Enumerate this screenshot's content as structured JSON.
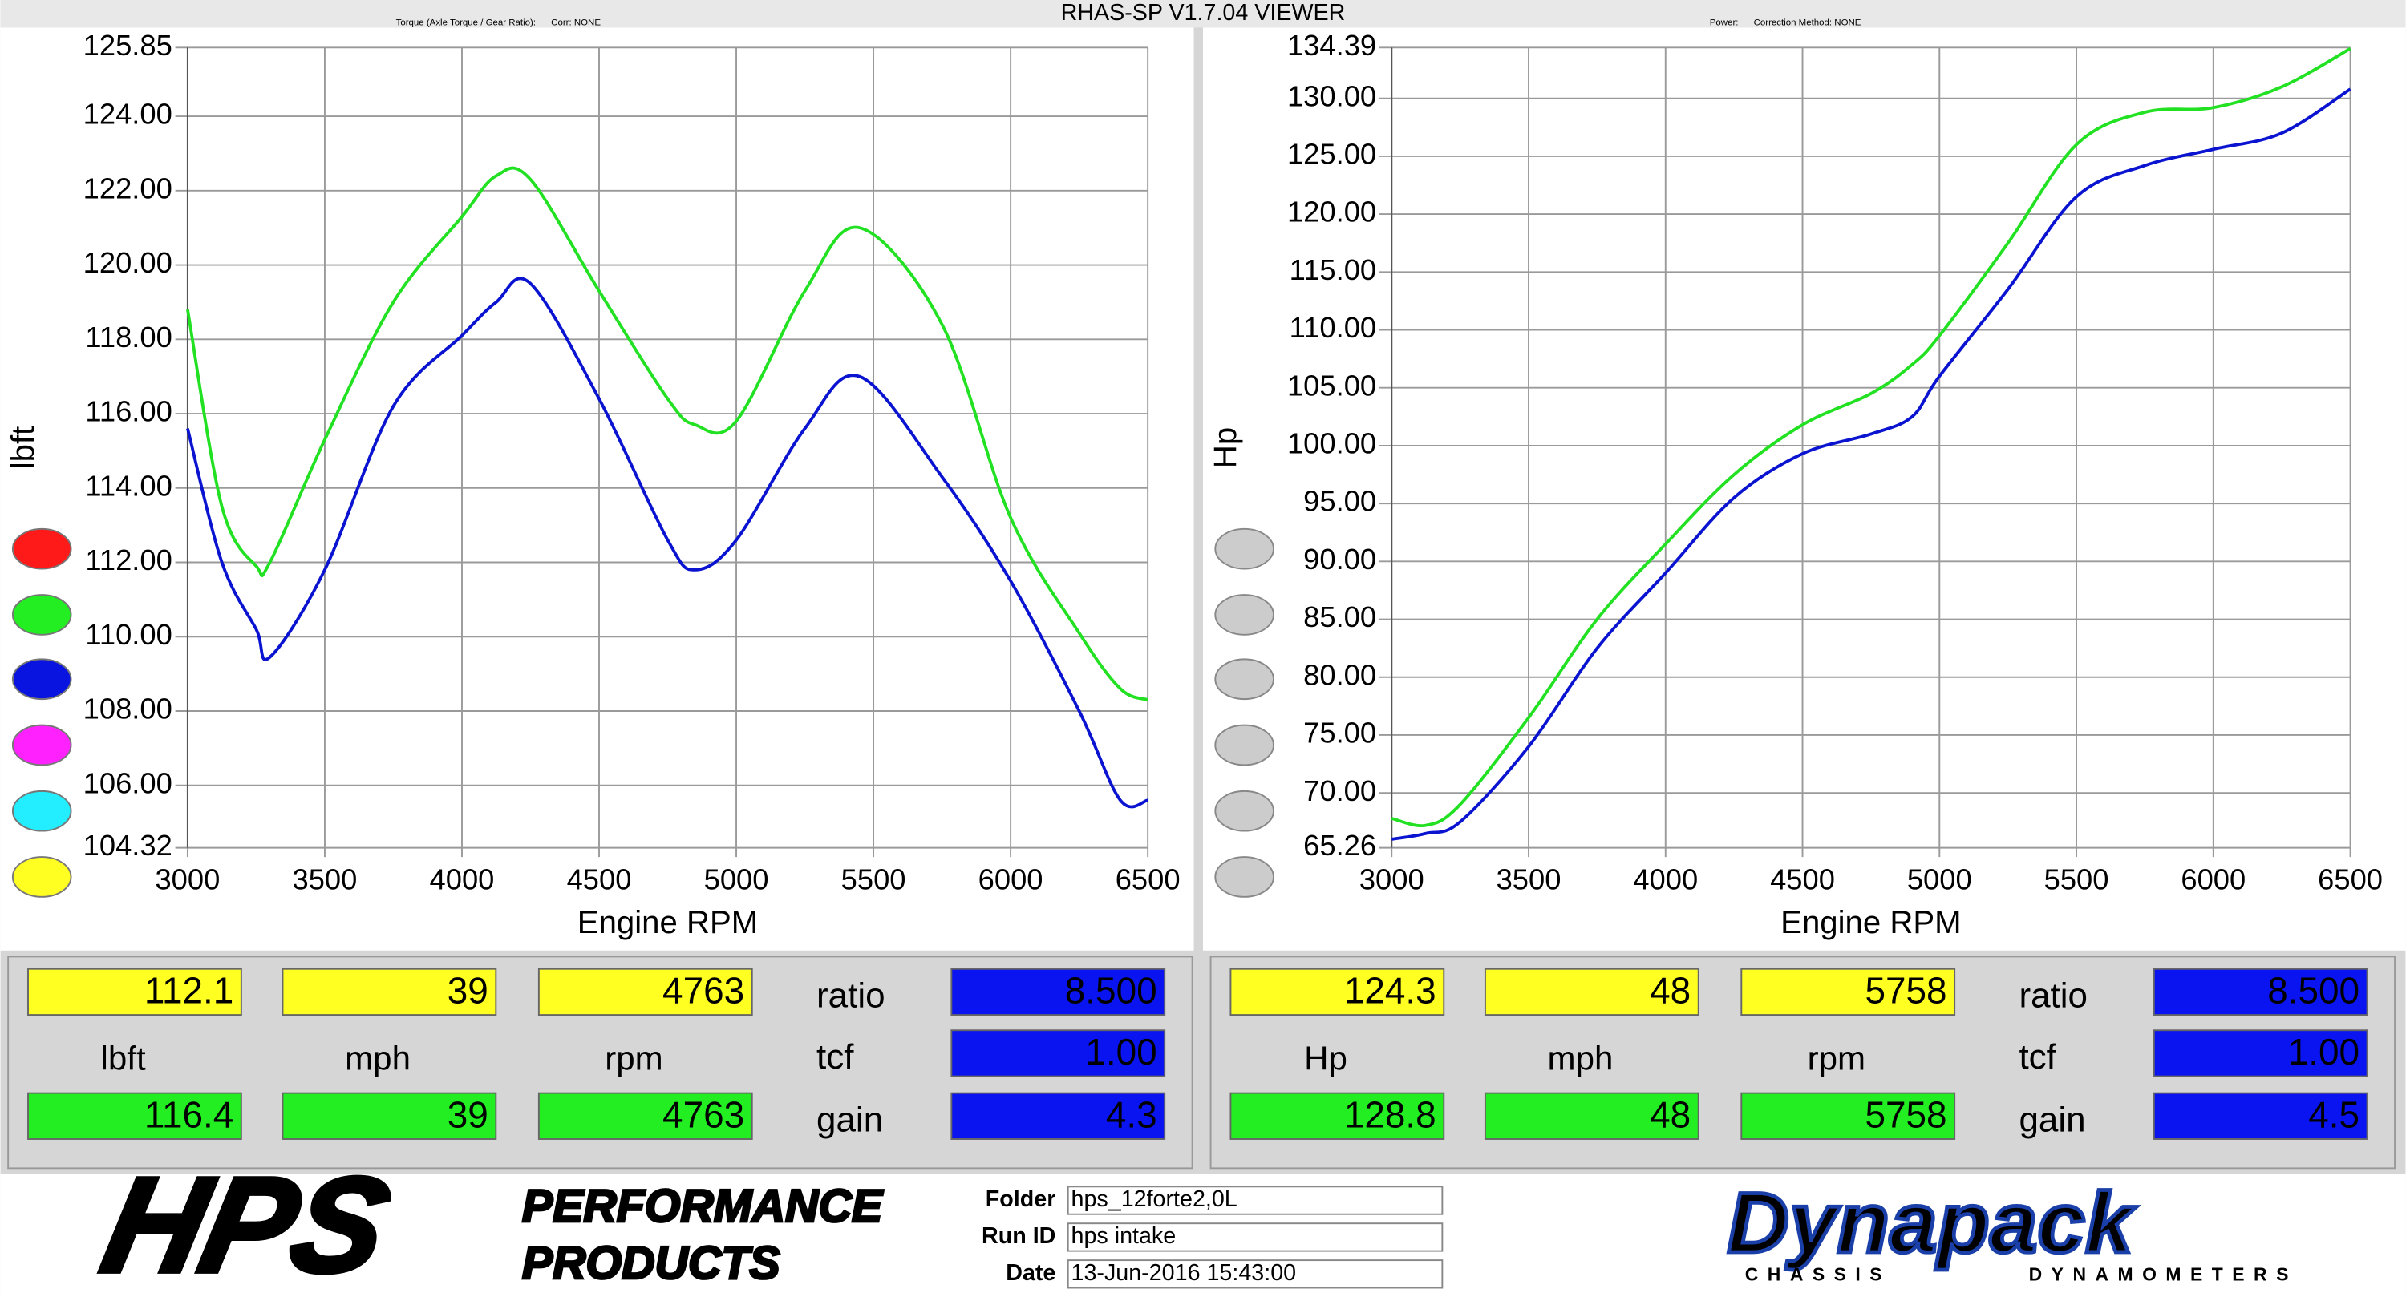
{
  "window_title": "RHAS-SP V1.7.04  VIEWER",
  "chart_data": [
    {
      "type": "line",
      "subtitle": "Torque (Axle Torque / Gear Ratio):",
      "correction": "Corr: NONE",
      "x_label": "Engine RPM",
      "y_label": "lbft",
      "x": [
        3000,
        3125,
        3250,
        3300,
        3500,
        3750,
        4000,
        4125,
        4250,
        4500,
        4750,
        4850,
        5000,
        5250,
        5450,
        5750,
        6000,
        6250,
        6400,
        6500
      ],
      "series": [
        {
          "color": "#22e022",
          "values": [
            118.8,
            113.5,
            111.9,
            112.0,
            115.3,
            119.0,
            121.3,
            122.4,
            122.3,
            119.3,
            116.4,
            115.7,
            115.8,
            119.3,
            121.0,
            118.4,
            113.2,
            110.1,
            108.6,
            108.3
          ]
        },
        {
          "color": "#0a14d0",
          "values": [
            115.6,
            112.0,
            110.2,
            109.45,
            111.8,
            116.2,
            118.1,
            119.0,
            119.5,
            116.4,
            112.6,
            111.8,
            112.6,
            115.6,
            117.0,
            114.3,
            111.5,
            108.0,
            105.6,
            105.6
          ]
        }
      ],
      "xlim": [
        3000,
        6500
      ],
      "xticks": [
        3000,
        3500,
        4000,
        4500,
        5000,
        5500,
        6000,
        6500
      ],
      "ylim": [
        104.32,
        125.85
      ],
      "yticks": [
        104.32,
        {
          "value": 106,
          "label": "106.00"
        },
        {
          "value": 108,
          "label": "108.00"
        },
        {
          "value": 110,
          "label": "110.00"
        },
        {
          "value": 112,
          "label": "112.00"
        },
        {
          "value": 114,
          "label": "114.00"
        },
        {
          "value": 116,
          "label": "116.00"
        },
        {
          "value": 118,
          "label": "118.00"
        },
        {
          "value": 120,
          "label": "120.00"
        },
        {
          "value": 122,
          "label": "122.00"
        },
        {
          "value": 124,
          "label": "124.00"
        },
        125.85
      ],
      "grid": true
    },
    {
      "type": "line",
      "subtitle": "Power:",
      "correction": "Correction Method: NONE",
      "x_label": "Engine RPM",
      "y_label": "Hp",
      "x": [
        3000,
        3125,
        3250,
        3500,
        3750,
        4000,
        4250,
        4500,
        4750,
        4900,
        5000,
        5250,
        5500,
        5750,
        6000,
        6250,
        6500
      ],
      "series": [
        {
          "color": "#22e022",
          "values": [
            67.8,
            67.2,
            69.0,
            76.5,
            85.0,
            91.5,
            97.5,
            101.8,
            104.5,
            107.0,
            109.5,
            117.5,
            126.0,
            128.8,
            129.2,
            131.0,
            134.3
          ]
        },
        {
          "color": "#0a14d0",
          "values": [
            66.0,
            66.5,
            67.5,
            74.0,
            82.5,
            89.0,
            95.5,
            99.3,
            101.0,
            102.5,
            106.0,
            113.5,
            121.5,
            124.2,
            125.6,
            127.0,
            130.8
          ]
        }
      ],
      "xlim": [
        3000,
        6500
      ],
      "xticks": [
        3000,
        3500,
        4000,
        4500,
        5000,
        5500,
        6000,
        6500
      ],
      "ylim": [
        65.26,
        134.39
      ],
      "yticks": [
        65.26,
        {
          "value": 70,
          "label": "70.00"
        },
        {
          "value": 75,
          "label": "75.00"
        },
        {
          "value": 80,
          "label": "80.00"
        },
        {
          "value": 85,
          "label": "85.00"
        },
        {
          "value": 90,
          "label": "90.00"
        },
        {
          "value": 95,
          "label": "95.00"
        },
        {
          "value": 100,
          "label": "100.00"
        },
        {
          "value": 105,
          "label": "105.00"
        },
        {
          "value": 110,
          "label": "110.00"
        },
        {
          "value": 115,
          "label": "115.00"
        },
        {
          "value": 120,
          "label": "120.00"
        },
        {
          "value": 125,
          "label": "125.00"
        },
        {
          "value": 130,
          "label": "130.00"
        },
        134.39
      ],
      "grid": true
    }
  ],
  "readouts": [
    {
      "top": [
        "112.1",
        "39",
        "4763"
      ],
      "units": [
        "lbft",
        "mph",
        "rpm"
      ],
      "bottom": [
        "116.4",
        "39",
        "4763"
      ],
      "params": [
        {
          "label": "ratio",
          "value": "8.500"
        },
        {
          "label": "tcf",
          "value": "1.00"
        },
        {
          "label": "gain",
          "value": "4.3"
        }
      ]
    },
    {
      "top": [
        "124.3",
        "48",
        "5758"
      ],
      "units": [
        "Hp",
        "mph",
        "rpm"
      ],
      "bottom": [
        "128.8",
        "48",
        "5758"
      ],
      "params": [
        {
          "label": "ratio",
          "value": "8.500"
        },
        {
          "label": "tcf",
          "value": "1.00"
        },
        {
          "label": "gain",
          "value": "4.5"
        }
      ]
    }
  ],
  "run_info": [
    {
      "label": "Folder",
      "value": "hps_12forte2,0L"
    },
    {
      "label": "Run ID",
      "value": "hps intake"
    },
    {
      "label": "Date",
      "value": "13-Jun-2016  15:43:00"
    }
  ],
  "logos": {
    "hps": "HPS",
    "hps_line1": "PERFORMANCE",
    "hps_line2": "PRODUCTS",
    "dynapack": "Dynapack",
    "dyn_line1": "CHASSIS",
    "dyn_line2": "DYNAMOMETERS"
  }
}
